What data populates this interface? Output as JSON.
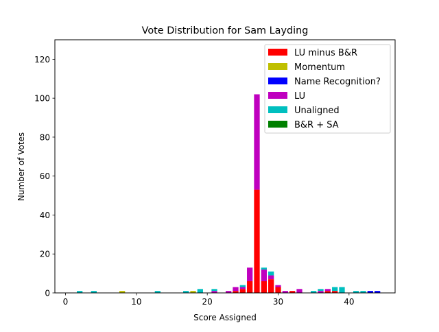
{
  "chart_data": {
    "type": "bar",
    "stacked": true,
    "title": "Vote Distribution for Sam Layding",
    "xlabel": "Score Assigned",
    "ylabel": "Number of Votes",
    "xlim": [
      -1.5,
      46.5
    ],
    "ylim": [
      0,
      130
    ],
    "xticks": [
      0,
      10,
      20,
      30,
      40
    ],
    "yticks": [
      0,
      20,
      40,
      60,
      80,
      100,
      120
    ],
    "legend_position": "top-right",
    "grid": false,
    "x": [
      2,
      4,
      8,
      13,
      17,
      18,
      19,
      21,
      23,
      24,
      25,
      26,
      27,
      28,
      29,
      30,
      31,
      32,
      33,
      35,
      36,
      37,
      38,
      39,
      41,
      42,
      43,
      44
    ],
    "series": [
      {
        "name": "LU minus B&R",
        "color": "#ff0000",
        "values": [
          0,
          0,
          0,
          0,
          0,
          0,
          0,
          0,
          0,
          1,
          2,
          6,
          53,
          6,
          7,
          3,
          0,
          1,
          0,
          0,
          0,
          1,
          1,
          0,
          0,
          0,
          0,
          0
        ]
      },
      {
        "name": "Momentum",
        "color": "#bfbf00",
        "values": [
          0,
          0,
          1,
          0,
          0,
          1,
          0,
          0,
          0,
          0,
          0,
          0,
          0,
          0,
          0,
          0,
          0,
          0,
          0,
          0,
          0,
          0,
          0,
          0,
          0,
          0,
          0,
          0
        ]
      },
      {
        "name": "Name Recognition?",
        "color": "#0000ff",
        "values": [
          0,
          0,
          0,
          0,
          0,
          0,
          0,
          0,
          0,
          0,
          0,
          0,
          0,
          0,
          0,
          0,
          0,
          0,
          0,
          0,
          0,
          0,
          0,
          0,
          0,
          0,
          1,
          1
        ]
      },
      {
        "name": "LU",
        "color": "#bf00bf",
        "values": [
          0,
          0,
          0,
          0,
          0,
          0,
          0,
          1,
          1,
          2,
          1,
          7,
          49,
          6,
          2,
          1,
          1,
          0,
          2,
          0,
          1,
          1,
          0,
          0,
          0,
          0,
          0,
          0
        ]
      },
      {
        "name": "Unaligned",
        "color": "#00bfbf",
        "values": [
          1,
          1,
          0,
          1,
          1,
          0,
          2,
          1,
          0,
          0,
          1,
          0,
          0,
          1,
          2,
          0,
          0,
          0,
          0,
          1,
          1,
          0,
          2,
          3,
          1,
          1,
          0,
          0
        ]
      },
      {
        "name": "B&R + SA",
        "color": "#008000",
        "values": [
          0,
          0,
          0,
          0,
          0,
          0,
          0,
          0,
          0,
          0,
          0,
          0,
          0,
          0,
          0,
          0,
          0,
          0,
          0,
          0,
          0,
          0,
          0,
          0,
          0,
          0,
          0,
          0
        ]
      }
    ]
  }
}
